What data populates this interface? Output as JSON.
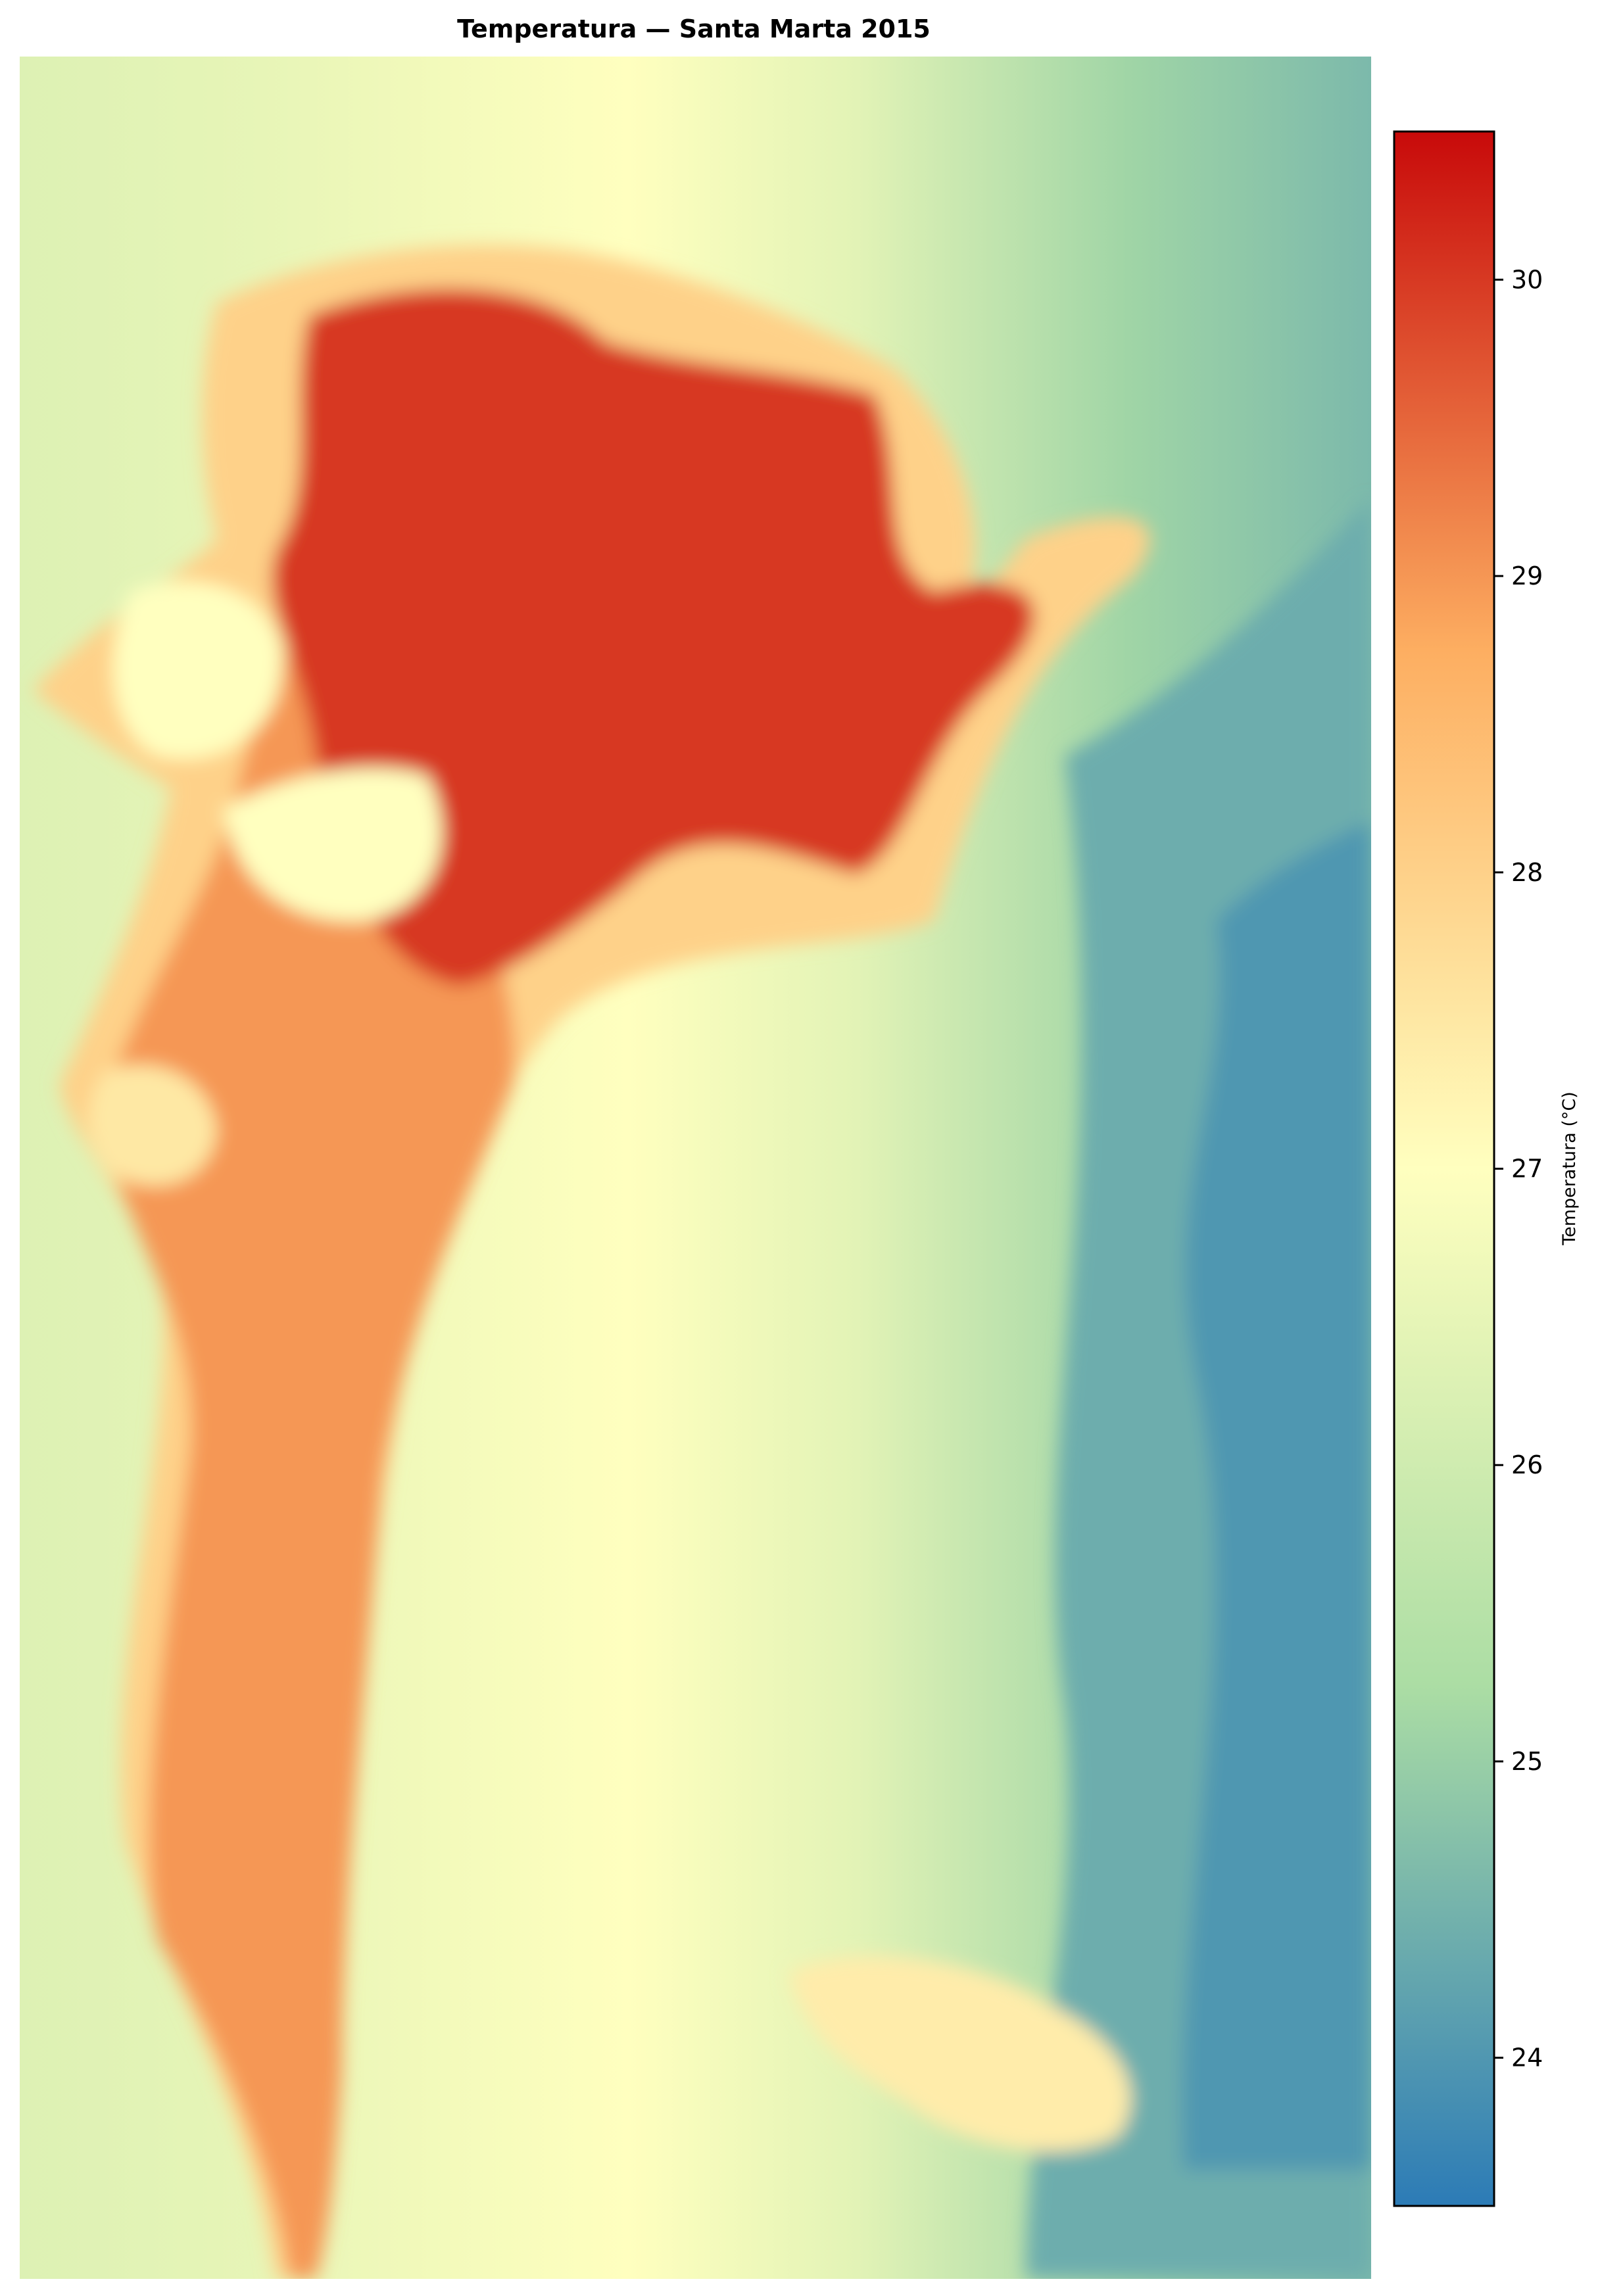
{
  "chart_data": {
    "type": "heatmap",
    "title": "Temperatura — Santa Marta 2015",
    "xlabel": "",
    "ylabel": "",
    "axes_visible": false,
    "grid": false,
    "colormap": "RdYlBu_r (red-yellow-blue, hot = red)",
    "value_range": [
      23.5,
      30.5
    ],
    "colorbar": {
      "label": "Temperatura (°C)",
      "position": "right",
      "ticks": [
        24,
        25,
        26,
        27,
        28,
        29,
        30
      ],
      "tick_labels": [
        "24",
        "25",
        "26",
        "27",
        "28",
        "29",
        "30"
      ]
    },
    "regions": [
      {
        "name": "urban core (north)",
        "approx_temp_c": 30
      },
      {
        "name": "coastal urban strip (west)",
        "approx_temp_c": 29
      },
      {
        "name": "urban fringe",
        "approx_temp_c": 28
      },
      {
        "name": "central plain",
        "approx_temp_c": 27
      },
      {
        "name": "western sea",
        "approx_temp_c": 26.3
      },
      {
        "name": "eastern slopes / sierra",
        "approx_temp_c": 24
      }
    ]
  },
  "colors": {
    "cmap_stops": [
      {
        "t": 0.0,
        "c": "#2c7bb6"
      },
      {
        "t": 0.25,
        "c": "#abdda4"
      },
      {
        "t": 0.5,
        "c": "#ffffbf"
      },
      {
        "t": 0.75,
        "c": "#fdae61"
      },
      {
        "t": 1.0,
        "c": "#c80a0a"
      }
    ]
  }
}
